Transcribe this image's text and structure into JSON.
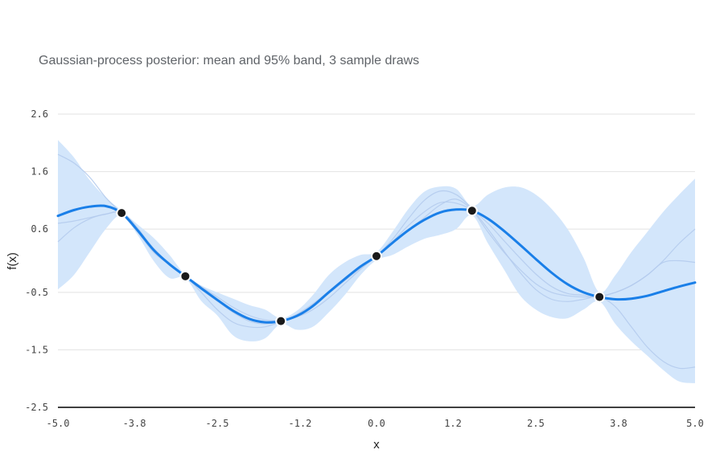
{
  "chart_data": {
    "type": "line",
    "title": "Gaussian-process posterior: mean and 95% band, 3 sample draws",
    "xlabel": "x",
    "ylabel": "f(x)",
    "xlim": [
      -5.0,
      5.0
    ],
    "ylim": [
      -2.5,
      2.6
    ],
    "x_ticks": [
      "-5.0",
      "-3.8",
      "-2.5",
      "-1.2",
      "0.0",
      "1.2",
      "2.5",
      "3.8",
      "5.0"
    ],
    "y_ticks": [
      "2.6",
      "1.6",
      "0.6",
      "-0.5",
      "-1.5",
      "-2.5"
    ],
    "grid": true,
    "colors": {
      "mean": "#1a7fe8",
      "band": "#d3e6fb",
      "samples": "#b4cbed",
      "observation": "#1a1a1a",
      "grid": "#e2e2e2",
      "axis": "#000000"
    },
    "observations": {
      "x": [
        -4.0,
        -3.0,
        -1.5,
        0.0,
        1.5,
        3.5
      ],
      "y": [
        0.88,
        -0.22,
        -1.0,
        0.13,
        0.92,
        -0.58
      ]
    },
    "x_grid": [
      -5.0,
      -4.75,
      -4.5,
      -4.25,
      -4.0,
      -3.75,
      -3.5,
      -3.25,
      -3.0,
      -2.75,
      -2.5,
      -2.25,
      -2.0,
      -1.75,
      -1.5,
      -1.25,
      -1.0,
      -0.75,
      -0.5,
      -0.25,
      0.0,
      0.25,
      0.5,
      0.75,
      1.0,
      1.25,
      1.5,
      1.75,
      2.0,
      2.25,
      2.5,
      2.75,
      3.0,
      3.25,
      3.5,
      3.75,
      4.0,
      4.25,
      4.5,
      4.75,
      5.0
    ],
    "series": [
      {
        "name": "mean",
        "values": [
          0.83,
          0.93,
          0.99,
          1.0,
          0.88,
          0.58,
          0.24,
          -0.01,
          -0.22,
          -0.43,
          -0.63,
          -0.82,
          -0.96,
          -1.02,
          -1.0,
          -0.91,
          -0.74,
          -0.5,
          -0.27,
          -0.05,
          0.13,
          0.36,
          0.58,
          0.76,
          0.89,
          0.94,
          0.92,
          0.78,
          0.57,
          0.33,
          0.08,
          -0.16,
          -0.36,
          -0.5,
          -0.58,
          -0.62,
          -0.61,
          -0.56,
          -0.48,
          -0.4,
          -0.33
        ]
      },
      {
        "name": "band_upper",
        "values": [
          2.15,
          1.85,
          1.45,
          1.15,
          0.92,
          0.68,
          0.45,
          0.15,
          -0.2,
          -0.38,
          -0.5,
          -0.61,
          -0.72,
          -0.8,
          -0.95,
          -0.82,
          -0.55,
          -0.2,
          0.02,
          0.15,
          0.2,
          0.55,
          0.95,
          1.25,
          1.34,
          1.3,
          1.0,
          1.2,
          1.32,
          1.33,
          1.2,
          0.95,
          0.6,
          0.1,
          -0.5,
          -0.2,
          0.2,
          0.55,
          0.9,
          1.2,
          1.48
        ]
      },
      {
        "name": "band_lower",
        "values": [
          -0.45,
          -0.2,
          0.2,
          0.6,
          0.84,
          0.5,
          0.05,
          -0.25,
          -0.25,
          -0.65,
          -0.9,
          -1.25,
          -1.35,
          -1.3,
          -1.05,
          -1.15,
          -1.1,
          -0.85,
          -0.55,
          -0.2,
          0.06,
          0.15,
          0.3,
          0.43,
          0.5,
          0.6,
          0.84,
          0.35,
          -0.1,
          -0.55,
          -0.8,
          -0.93,
          -0.95,
          -0.8,
          -0.66,
          -1.05,
          -1.35,
          -1.6,
          -1.85,
          -2.05,
          -2.08
        ]
      },
      {
        "name": "sample 1",
        "values": [
          1.9,
          1.75,
          1.5,
          1.15,
          0.87,
          0.55,
          0.2,
          -0.02,
          -0.22,
          -0.45,
          -0.65,
          -0.85,
          -1.0,
          -1.05,
          -1.0,
          -0.88,
          -0.7,
          -0.48,
          -0.25,
          -0.05,
          0.14,
          0.42,
          0.78,
          1.1,
          1.26,
          1.2,
          0.95,
          0.6,
          0.22,
          -0.15,
          -0.45,
          -0.62,
          -0.66,
          -0.62,
          -0.58,
          -0.75,
          -1.1,
          -1.45,
          -1.7,
          -1.82,
          -1.8
        ]
      },
      {
        "name": "sample 2",
        "values": [
          0.7,
          0.74,
          0.8,
          0.86,
          0.89,
          0.62,
          0.25,
          -0.02,
          -0.21,
          -0.4,
          -0.58,
          -0.76,
          -0.9,
          -0.98,
          -0.99,
          -0.93,
          -0.8,
          -0.6,
          -0.35,
          -0.1,
          0.13,
          0.35,
          0.58,
          0.8,
          1.02,
          1.12,
          0.93,
          0.55,
          0.2,
          -0.1,
          -0.35,
          -0.5,
          -0.56,
          -0.58,
          -0.57,
          -0.5,
          -0.38,
          -0.2,
          0.02,
          0.05,
          0.02
        ]
      },
      {
        "name": "sample 3",
        "values": [
          0.38,
          0.62,
          0.78,
          0.86,
          0.88,
          0.6,
          0.27,
          0.0,
          -0.21,
          -0.5,
          -0.8,
          -1.02,
          -1.1,
          -1.1,
          -1.01,
          -0.9,
          -0.74,
          -0.52,
          -0.3,
          -0.08,
          0.12,
          0.38,
          0.66,
          0.9,
          1.06,
          1.05,
          0.93,
          0.7,
          0.4,
          0.1,
          -0.18,
          -0.4,
          -0.52,
          -0.55,
          -0.57,
          -0.5,
          -0.38,
          -0.2,
          0.05,
          0.35,
          0.6
        ]
      }
    ]
  }
}
